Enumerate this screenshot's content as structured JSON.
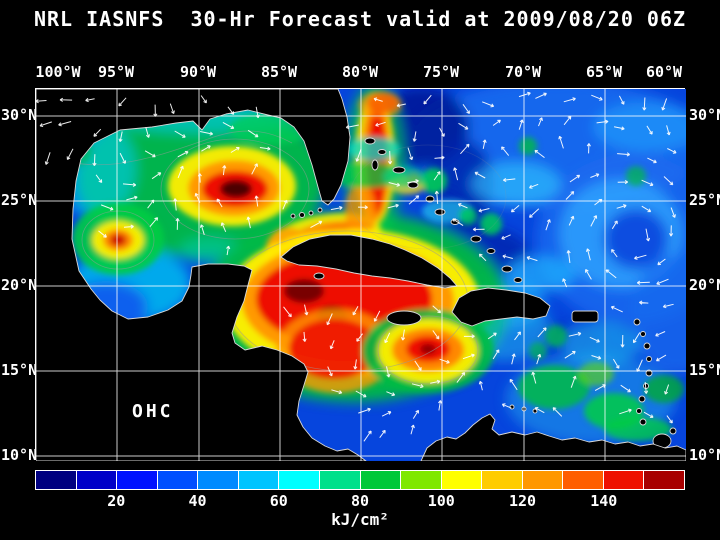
{
  "header": {
    "title": "NRL IASNFS  30-Hr Forecast valid at 2009/08/20 06Z"
  },
  "map": {
    "lon_labels": [
      "100°W",
      "95°W",
      "90°W",
      "85°W",
      "80°W",
      "75°W",
      "70°W",
      "65°W",
      "60°W"
    ],
    "lat_labels": [
      "30°N",
      "25°N",
      "20°N",
      "15°N",
      "10°N"
    ],
    "field_label": "OHC"
  },
  "colorbar": {
    "min": 0,
    "max": 160,
    "ticks": [
      "20",
      "40",
      "60",
      "80",
      "100",
      "120",
      "140"
    ],
    "units": "kJ/cm²",
    "segments": [
      "#000080",
      "#0000c8",
      "#0012ff",
      "#004eff",
      "#008aff",
      "#00c4ff",
      "#00ffff",
      "#00e08a",
      "#00c838",
      "#7fe800",
      "#ffff00",
      "#ffcc00",
      "#ff9700",
      "#ff5e00",
      "#ee1100",
      "#a80000"
    ]
  },
  "colors": {
    "background": "#000000",
    "text": "#ffffff",
    "grid": "#ffffff",
    "coastline": "#d8d8d8",
    "arrows": "#ffffff",
    "ocean_base": "#0645dd"
  }
}
